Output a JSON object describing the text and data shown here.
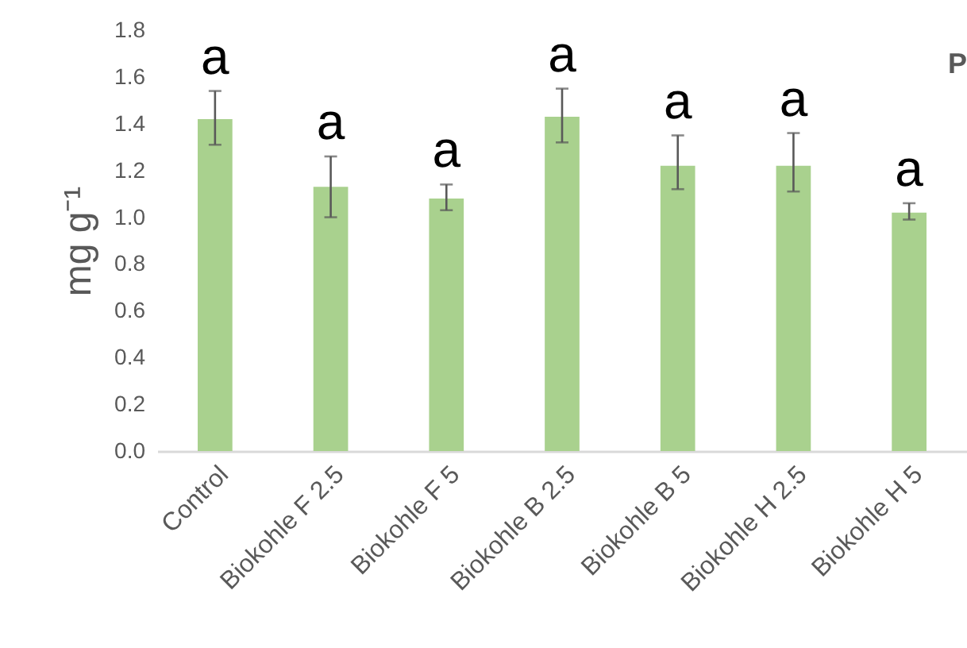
{
  "chart_data": {
    "type": "bar",
    "ylabel": "mg g⁻¹",
    "categories": [
      "Control",
      "Biokohle F 2.5",
      "Biokohle F 5",
      "Biokohle B 2.5",
      "Biokohle B 5",
      "Biokohle H 2.5",
      "Biokohle H 5"
    ],
    "values": [
      1.42,
      1.13,
      1.08,
      1.43,
      1.22,
      1.22,
      1.02
    ],
    "errors": [
      [
        1.31,
        1.54
      ],
      [
        1.0,
        1.26
      ],
      [
        1.03,
        1.14
      ],
      [
        1.32,
        1.55
      ],
      [
        1.12,
        1.35
      ],
      [
        1.11,
        1.36
      ],
      [
        0.99,
        1.06
      ]
    ],
    "color": "#a9d18e",
    "ylim": [
      0,
      1.8
    ],
    "yticks": [
      {
        "value": 0,
        "label": "0.0"
      },
      {
        "value": 0.2,
        "label": "0.2"
      },
      {
        "value": 0.4,
        "label": "0.4"
      },
      {
        "value": 0.6,
        "label": "0.6"
      },
      {
        "value": 0.8,
        "label": "0.8"
      },
      {
        "value": 1.0,
        "label": "1.0"
      },
      {
        "value": 1.2,
        "label": "1.2"
      },
      {
        "value": 1.4,
        "label": "1.4"
      },
      {
        "value": 1.6,
        "label": "1.6"
      },
      {
        "value": 1.8,
        "label": "1.8"
      }
    ],
    "grid": false,
    "annotations": [
      {
        "text": "a",
        "x": "Control",
        "y": 1.54
      },
      {
        "text": "a",
        "x": "Biokohle F 2.5",
        "y": 1.26
      },
      {
        "text": "a",
        "x": "Biokohle F 5",
        "y": 1.14
      },
      {
        "text": "a",
        "x": "Biokohle B 2.5",
        "y": 1.55
      },
      {
        "text": "a",
        "x": "Biokohle B 5",
        "y": 1.35
      },
      {
        "text": "a",
        "x": "Biokohle H 2.5",
        "y": 1.36
      },
      {
        "text": "a",
        "x": "Biokohle H 5",
        "y": 1.06
      },
      "P"
    ]
  }
}
